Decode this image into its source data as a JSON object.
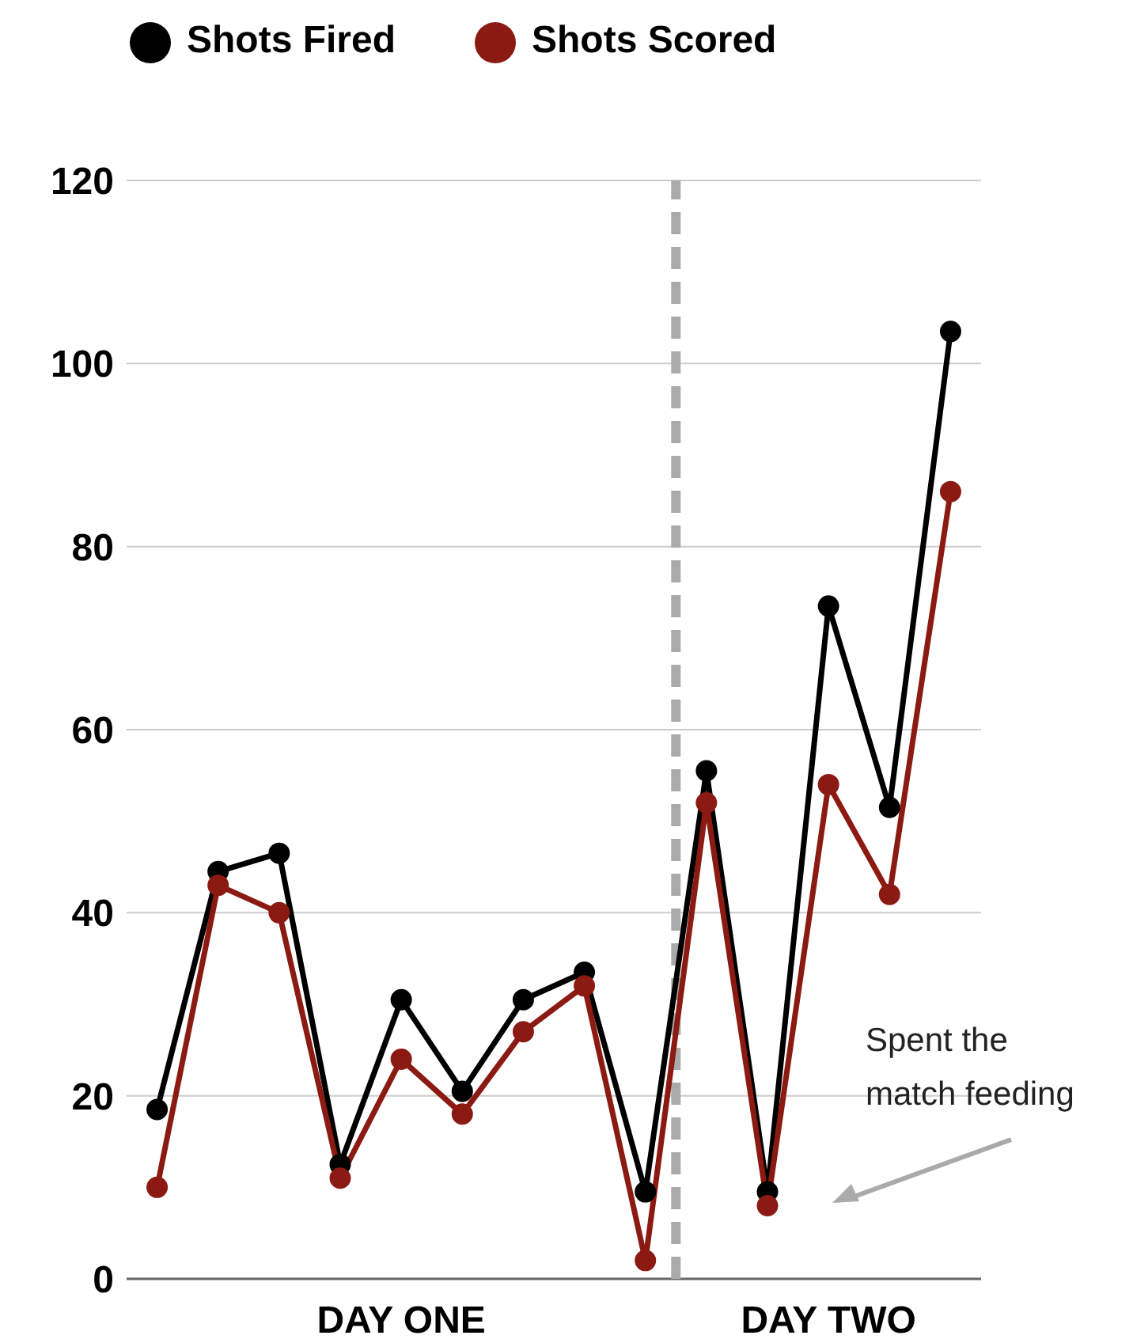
{
  "chart_data": {
    "type": "line",
    "categories": [
      null,
      null,
      null,
      null,
      null,
      null,
      null,
      null,
      null,
      null,
      null,
      null,
      null,
      null
    ],
    "series": [
      {
        "name": "Shots Fired",
        "color": "#000000",
        "values": [
          18.5,
          44.5,
          46.5,
          12.5,
          30.5,
          20.5,
          30.5,
          33.5,
          9.5,
          55.5,
          9.5,
          73.5,
          51.5,
          103.5
        ]
      },
      {
        "name": "Shots Scored",
        "color": "#8b1a12",
        "values": [
          10,
          43,
          40,
          11,
          24,
          18,
          27,
          32,
          2,
          52,
          8,
          54,
          42,
          86
        ]
      }
    ],
    "ylim": [
      0,
      120
    ],
    "yticks": [
      0,
      20,
      40,
      60,
      80,
      100,
      120
    ],
    "grid": "y",
    "legend": "top left",
    "marker": "circle",
    "line_style": "solid",
    "annotations": [
      "DAY ONE",
      "DAY TWO",
      "Spent the match feeding"
    ]
  }
}
